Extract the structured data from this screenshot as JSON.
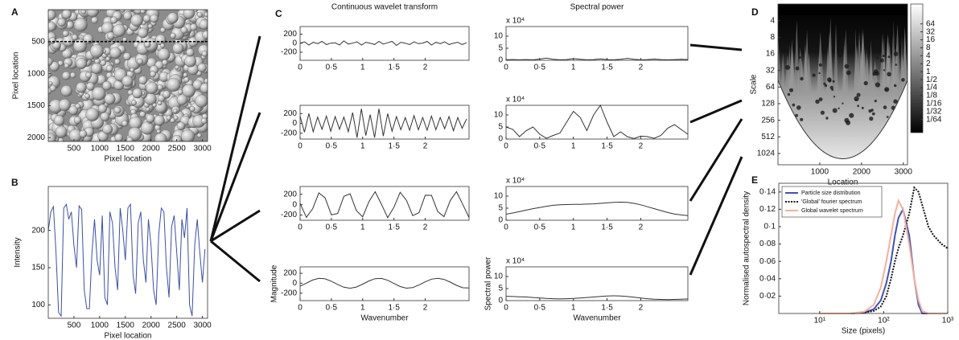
{
  "chart_data": [
    {
      "type": "image",
      "panel": "A",
      "xlabel": "Pixel location",
      "ylabel": "Pixel location",
      "xlim": [
        0,
        3100
      ],
      "ylim": [
        0,
        2060
      ],
      "yreverse": true,
      "xticks": [
        500,
        1000,
        1500,
        2000,
        2500,
        3000
      ],
      "yticks": [
        500,
        1000,
        1500,
        2000
      ],
      "hline": 500
    },
    {
      "type": "line",
      "panel": "B",
      "xlabel": "Pixel location",
      "ylabel": "Intensity",
      "color": "#3b4fa8",
      "xlim": [
        0,
        3100
      ],
      "ylim": [
        82,
        259
      ],
      "xticks": [
        500,
        1000,
        1500,
        2000,
        2500,
        3000
      ],
      "yticks": [
        100,
        150,
        200
      ],
      "x": [
        0,
        50,
        100,
        150,
        200,
        250,
        300,
        350,
        400,
        450,
        500,
        550,
        600,
        650,
        700,
        750,
        800,
        850,
        900,
        950,
        1000,
        1050,
        1100,
        1150,
        1200,
        1250,
        1300,
        1350,
        1400,
        1450,
        1500,
        1550,
        1600,
        1650,
        1700,
        1750,
        1800,
        1850,
        1900,
        1950,
        2000,
        2050,
        2100,
        2150,
        2200,
        2250,
        2300,
        2350,
        2400,
        2450,
        2500,
        2550,
        2600,
        2650,
        2700,
        2750,
        2800,
        2850,
        2900,
        2950,
        3000,
        3050
      ],
      "values": [
        200,
        225,
        232,
        170,
        90,
        85,
        230,
        235,
        215,
        225,
        180,
        150,
        233,
        228,
        120,
        95,
        95,
        170,
        215,
        160,
        140,
        220,
        110,
        100,
        225,
        210,
        150,
        120,
        230,
        200,
        160,
        230,
        235,
        140,
        115,
        210,
        225,
        160,
        130,
        215,
        180,
        120,
        100,
        195,
        230,
        225,
        150,
        110,
        205,
        220,
        170,
        120,
        215,
        190,
        230,
        100,
        85,
        180,
        215,
        170,
        130,
        175
      ]
    },
    {
      "type": "line",
      "panel": "C",
      "title": "Continuous wavelet transform",
      "color": "#333333",
      "xlim": [
        0,
        2.7
      ],
      "ylim": [
        -380,
        370
      ],
      "xticks": [
        0,
        {
          "value": 0.5,
          "label": "0·5"
        },
        1,
        {
          "value": 1.5,
          "label": "1·5"
        },
        2
      ],
      "yticks": [
        -200,
        0,
        200
      ],
      "x": [
        0,
        0.07,
        0.14,
        0.21,
        0.28,
        0.35,
        0.42,
        0.49,
        0.56,
        0.63,
        0.7,
        0.77,
        0.84,
        0.91,
        0.98,
        1.05,
        1.12,
        1.19,
        1.26,
        1.33,
        1.4,
        1.47,
        1.54,
        1.61,
        1.68,
        1.75,
        1.82,
        1.89,
        1.96,
        2.03,
        2.1,
        2.17,
        2.24,
        2.31,
        2.38,
        2.45,
        2.52,
        2.59,
        2.66
      ],
      "values": [
        0,
        30,
        -40,
        20,
        -10,
        40,
        -30,
        0,
        10,
        -40,
        50,
        -20,
        0,
        30,
        -40,
        20,
        0,
        -30,
        40,
        -20,
        10,
        40,
        -50,
        20,
        0,
        -30,
        30,
        -10,
        0,
        40,
        -40,
        20,
        -10,
        30,
        -30,
        0,
        20,
        -30,
        10
      ]
    },
    {
      "type": "line",
      "color": "#333333",
      "xlim": [
        0,
        2.7
      ],
      "ylim": [
        -320,
        370
      ],
      "xticks": [
        0,
        {
          "value": 0.5,
          "label": "0·5"
        },
        1,
        {
          "value": 1.5,
          "label": "1·5"
        },
        2
      ],
      "yticks": [
        -200,
        0,
        200
      ],
      "x": [
        0,
        0.07,
        0.14,
        0.21,
        0.28,
        0.35,
        0.42,
        0.49,
        0.56,
        0.63,
        0.7,
        0.77,
        0.84,
        0.91,
        0.98,
        1.05,
        1.12,
        1.19,
        1.26,
        1.33,
        1.4,
        1.47,
        1.54,
        1.61,
        1.68,
        1.75,
        1.82,
        1.89,
        1.96,
        2.03,
        2.1,
        2.17,
        2.24,
        2.31,
        2.38,
        2.45,
        2.52,
        2.59,
        2.66
      ],
      "values": [
        150,
        -180,
        200,
        -170,
        130,
        -120,
        150,
        -160,
        140,
        -120,
        130,
        -170,
        220,
        -290,
        300,
        -250,
        180,
        -290,
        300,
        -260,
        200,
        -160,
        140,
        -130,
        120,
        -140,
        160,
        -130,
        120,
        -140,
        150,
        -130,
        120,
        -110,
        140,
        -150,
        120,
        -100,
        90
      ]
    },
    {
      "type": "line",
      "color": "#333333",
      "xlim": [
        0,
        2.7
      ],
      "ylim": [
        -300,
        350
      ],
      "xticks": [
        0,
        {
          "value": 0.5,
          "label": "0·5"
        },
        1,
        {
          "value": 1.5,
          "label": "1·5"
        },
        2
      ],
      "yticks": [
        -200,
        0,
        200
      ],
      "x": [
        0,
        0.1,
        0.2,
        0.3,
        0.4,
        0.5,
        0.6,
        0.7,
        0.8,
        0.9,
        1,
        1.1,
        1.2,
        1.3,
        1.4,
        1.5,
        1.6,
        1.7,
        1.8,
        1.9,
        2,
        2.1,
        2.2,
        2.3,
        2.4,
        2.5,
        2.6,
        2.7
      ],
      "values": [
        27,
        -244,
        -81,
        226,
        131,
        -197,
        -172,
        160,
        207,
        -116,
        -233,
        58,
        250,
        8,
        -250,
        -47,
        238,
        84,
        -212,
        -153,
        181,
        179,
        -134,
        -230,
        80,
        249,
        5,
        -247
      ]
    },
    {
      "type": "line",
      "color": "#333333",
      "xlabel": "Wavenumber",
      "ylabel": "Magnitude",
      "xlim": [
        0,
        2.7
      ],
      "ylim": [
        -350,
        330
      ],
      "xticks": [
        0,
        {
          "value": 0.5,
          "label": "0·5"
        },
        1,
        {
          "value": 1.5,
          "label": "1·5"
        },
        2
      ],
      "yticks": [
        -200,
        0,
        200
      ],
      "x": [
        0,
        0.1,
        0.2,
        0.3,
        0.4,
        0.5,
        0.6,
        0.7,
        0.8,
        0.9,
        1,
        1.1,
        1.2,
        1.3,
        1.4,
        1.5,
        1.6,
        1.7,
        1.8,
        1.9,
        2,
        2.1,
        2.2,
        2.3,
        2.4,
        2.5,
        2.6,
        2.7
      ],
      "values": [
        -61,
        2,
        64,
        98,
        89,
        41,
        -25,
        -80,
        -100,
        -76,
        -18,
        47,
        92,
        97,
        59,
        -5,
        -66,
        -99,
        -88,
        -36,
        29,
        82,
        100,
        77,
        23,
        -43,
        -91,
        -96
      ]
    },
    {
      "type": "line",
      "title": "Spectral power",
      "multiplier": "x 10⁴",
      "color": "#333333",
      "xlim": [
        0,
        2.7
      ],
      "ylim": [
        0,
        14
      ],
      "xticks": [
        0,
        {
          "value": 0.5,
          "label": "0·5"
        },
        1,
        {
          "value": 1.5,
          "label": "1·5"
        },
        2
      ],
      "yticks": [
        0,
        5,
        10
      ],
      "x": [
        0,
        0.1,
        0.2,
        0.3,
        0.4,
        0.5,
        0.6,
        0.7,
        0.8,
        0.9,
        1,
        1.1,
        1.2,
        1.3,
        1.4,
        1.5,
        1.6,
        1.7,
        1.8,
        1.9,
        2,
        2.1,
        2.2,
        2.3,
        2.4,
        2.5,
        2.6,
        2.7
      ],
      "values": [
        0.2,
        0.3,
        0.2,
        0.3,
        0.2,
        0.5,
        0.9,
        0.4,
        0.2,
        0.3,
        0.7,
        0.4,
        0.2,
        0.3,
        0.6,
        0.3,
        0.2,
        0.4,
        0.8,
        0.4,
        0.2,
        0.3,
        0.5,
        0.3,
        0.2,
        0.3,
        0.4,
        0.3
      ]
    },
    {
      "type": "line",
      "multiplier": "x 10⁴",
      "color": "#333333",
      "xlim": [
        0,
        2.7
      ],
      "ylim": [
        0,
        14
      ],
      "xticks": [
        0,
        {
          "value": 0.5,
          "label": "0·5"
        },
        1,
        {
          "value": 1.5,
          "label": "1·5"
        },
        2
      ],
      "yticks": [
        0,
        5,
        10
      ],
      "x": [
        0,
        0.1,
        0.2,
        0.3,
        0.4,
        0.5,
        0.6,
        0.7,
        0.8,
        0.9,
        1,
        1.1,
        1.2,
        1.3,
        1.4,
        1.5,
        1.6,
        1.7,
        1.8,
        1.9,
        2,
        2.1,
        2.2,
        2.3,
        2.4,
        2.5,
        2.6,
        2.7
      ],
      "values": [
        5,
        4,
        1,
        3.5,
        5,
        2,
        0.3,
        1.5,
        2.5,
        7,
        11.5,
        9,
        3.5,
        10,
        14,
        7,
        1,
        3,
        1,
        0.2,
        1.2,
        1,
        0.3,
        1.5,
        4.5,
        6,
        4,
        2
      ]
    },
    {
      "type": "line",
      "multiplier": "x 10⁴",
      "color": "#333333",
      "xlim": [
        0,
        2.7
      ],
      "ylim": [
        0,
        14
      ],
      "xticks": [
        0,
        {
          "value": 0.5,
          "label": "0·5"
        },
        1,
        {
          "value": 1.5,
          "label": "1·5"
        },
        2
      ],
      "yticks": [
        0,
        5,
        10
      ],
      "x": [
        0,
        0.1,
        0.2,
        0.3,
        0.4,
        0.5,
        0.6,
        0.7,
        0.8,
        0.9,
        1,
        1.1,
        1.2,
        1.3,
        1.4,
        1.5,
        1.6,
        1.7,
        1.8,
        1.9,
        2,
        2.1,
        2.2,
        2.3,
        2.4,
        2.5,
        2.6,
        2.7
      ],
      "values": [
        2.5,
        3,
        3.6,
        4.2,
        4.8,
        5.3,
        5.8,
        6.2,
        6.4,
        6.5,
        6.6,
        6.6,
        6.7,
        6.8,
        7,
        7.2,
        7.4,
        7.5,
        7.4,
        7,
        6.4,
        5.6,
        4.8,
        4,
        3.2,
        2.6,
        2.2,
        1.9
      ]
    },
    {
      "type": "line",
      "multiplier": "x 10⁴",
      "color": "#333333",
      "xlabel": "Wavenumber",
      "ylabel": "Spectral power",
      "xlim": [
        0,
        2.7
      ],
      "ylim": [
        0,
        14
      ],
      "xticks": [
        0,
        {
          "value": 0.5,
          "label": "0·5"
        },
        1,
        {
          "value": 1.5,
          "label": "1·5"
        },
        2
      ],
      "yticks": [
        0,
        5,
        10
      ],
      "x": [
        0,
        0.1,
        0.2,
        0.3,
        0.4,
        0.5,
        0.6,
        0.7,
        0.8,
        0.9,
        1,
        1.1,
        1.2,
        1.3,
        1.4,
        1.5,
        1.6,
        1.7,
        1.8,
        1.9,
        2,
        2.1,
        2.2,
        2.3,
        2.4,
        2.5,
        2.6,
        2.7
      ],
      "values": [
        1.8,
        1.7,
        1.6,
        1.5,
        1.3,
        1.1,
        0.9,
        0.8,
        0.7,
        0.8,
        0.9,
        1.1,
        1.3,
        1.5,
        1.7,
        1.9,
        2,
        1.9,
        1.7,
        1.4,
        1.1,
        0.8,
        0.6,
        0.5,
        0.4,
        0.5,
        0.6,
        0.7
      ]
    },
    {
      "type": "heatmap",
      "panel": "D",
      "xlabel": "Location",
      "ylabel": "Scale",
      "xlim": [
        0,
        3100
      ],
      "ylim": [
        2,
        1640
      ],
      "ylog": true,
      "yreverse": true,
      "xticks": [
        1000,
        2000,
        3000
      ],
      "yticks": [
        4,
        8,
        16,
        32,
        64,
        128,
        256,
        512,
        1024
      ],
      "colorbar_lim": [
        0.005,
        360
      ],
      "colorbar_ticks": [
        64,
        32,
        16,
        8,
        4,
        2,
        1,
        {
          "value": 0.5,
          "label": "1/2"
        },
        {
          "value": 0.25,
          "label": "1/4"
        },
        {
          "value": 0.125,
          "label": "1/8"
        },
        {
          "value": 0.0625,
          "label": "1/16"
        },
        {
          "value": 0.03125,
          "label": "1/32"
        },
        {
          "value": 0.015625,
          "label": "1/64"
        }
      ]
    },
    {
      "type": "line",
      "panel": "E",
      "xlabel": "Size (pixels)",
      "ylabel": "Normalised autospectral density",
      "xlog": true,
      "xlim": [
        2.3,
        1000
      ],
      "ylim": [
        0,
        0.15
      ],
      "legend": "upper left",
      "xticks": [
        {
          "value": 10,
          "label": "10¹"
        },
        {
          "value": 100,
          "label": "10²"
        },
        {
          "value": 1000,
          "label": "10³"
        }
      ],
      "yticks": [
        {
          "value": 0.02,
          "label": "0·02"
        },
        {
          "value": 0.04,
          "label": "0·04"
        },
        {
          "value": 0.06,
          "label": "0·06"
        },
        {
          "value": 0.08,
          "label": "0·08"
        },
        {
          "value": 0.1,
          "label": "0·1"
        },
        {
          "value": 0.12,
          "label": "0·12"
        },
        {
          "value": 0.14,
          "label": "0·14"
        }
      ],
      "x": [
        10,
        30,
        50,
        70,
        90,
        110,
        130,
        150,
        170,
        200,
        250,
        300,
        350,
        400,
        500,
        600,
        800,
        1000
      ],
      "series": [
        {
          "name": "Particle size distribution",
          "color": "#3f51b5",
          "style": "solid",
          "values": [
            0,
            0,
            0.001,
            0.005,
            0.015,
            0.035,
            0.06,
            0.09,
            0.11,
            0.12,
            0.09,
            0.04,
            0.01,
            0,
            0,
            0,
            0,
            0
          ]
        },
        {
          "name": "'Global' fourier spectrum",
          "color": "#111111",
          "style": "dotted",
          "values": [
            0,
            0,
            0.001,
            0.003,
            0.008,
            0.02,
            0.04,
            0.06,
            0.075,
            0.09,
            0.115,
            0.145,
            0.14,
            0.125,
            0.1,
            0.09,
            0.08,
            0.075
          ]
        },
        {
          "name": "Global wavelet spectrum",
          "color": "#f4b09c",
          "style": "solid",
          "values": [
            0,
            0,
            0.002,
            0.01,
            0.03,
            0.06,
            0.09,
            0.115,
            0.13,
            0.12,
            0.08,
            0.04,
            0.015,
            0.003,
            0,
            0,
            0,
            0
          ]
        }
      ]
    }
  ]
}
